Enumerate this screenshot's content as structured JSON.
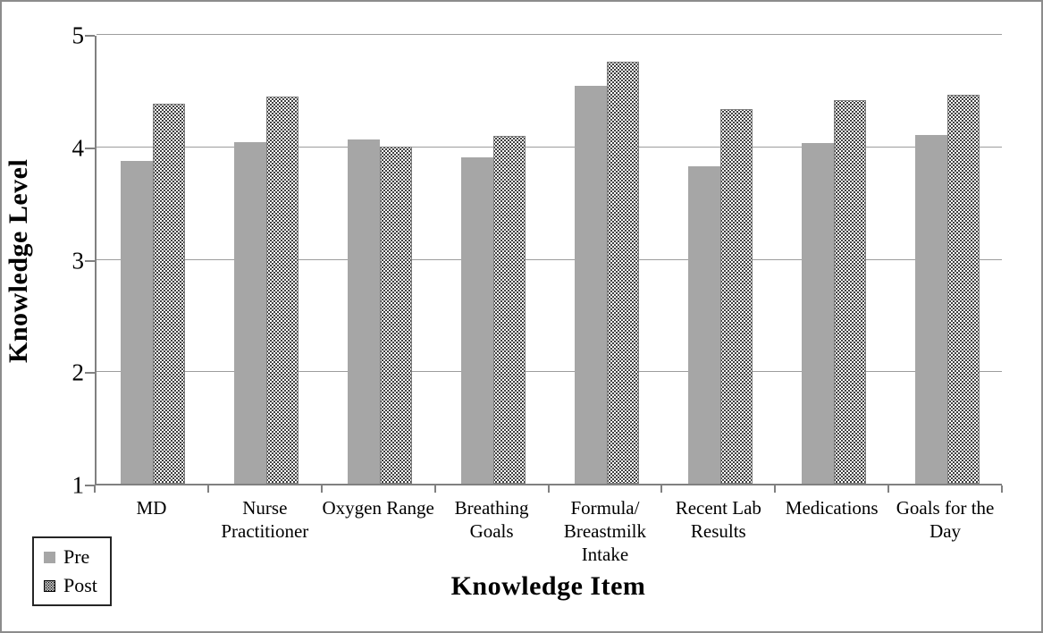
{
  "chart_data": {
    "type": "bar",
    "title": "",
    "xlabel": "Knowledge Item",
    "ylabel": "Knowledge Level",
    "ylim": [
      1,
      5
    ],
    "yticks": [
      1,
      2,
      3,
      4,
      5
    ],
    "grid": true,
    "legend_position": "bottom-left",
    "categories": [
      "MD",
      "Nurse Practitioner",
      "Oxygen Range",
      "Breathing Goals",
      "Formula/ Breastmilk Intake",
      "Recent Lab Results",
      "Medications",
      "Goals for the Day"
    ],
    "series": [
      {
        "name": "Pre",
        "values": [
          3.87,
          4.04,
          4.06,
          3.9,
          4.54,
          3.82,
          4.03,
          4.1
        ]
      },
      {
        "name": "Post",
        "values": [
          4.38,
          4.44,
          4.0,
          4.09,
          4.75,
          4.33,
          4.41,
          4.46
        ]
      }
    ]
  },
  "colors": {
    "pre_bar": "#a6a6a6",
    "post_bar_background": "#ffffff",
    "post_bar_pattern": "#000000",
    "post_bar_border": "#7f7f7f",
    "gridline": "#9d9d9d",
    "axis": "#808080",
    "figure_border": "#8c8c8c",
    "text": "#000000"
  }
}
